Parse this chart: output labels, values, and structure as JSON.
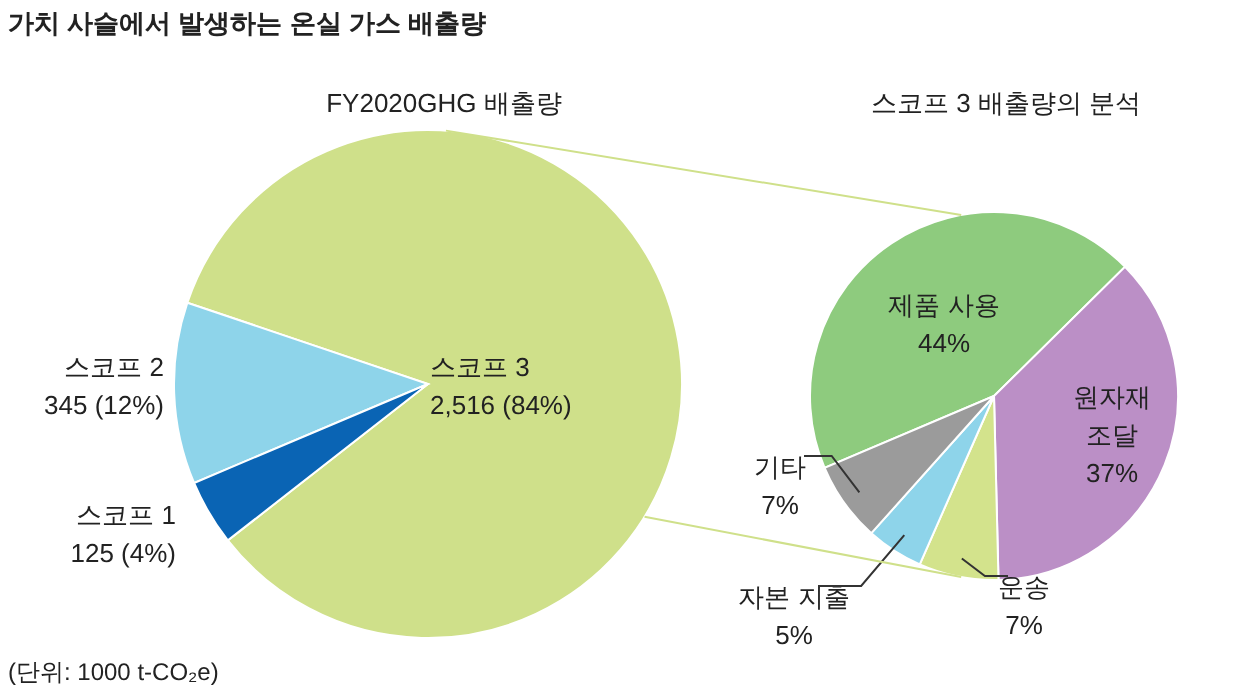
{
  "chart_data": [
    {
      "type": "pie",
      "title": "FY2020GHG 배출량",
      "categories": [
        "스코프 3",
        "스코프 2",
        "스코프 1"
      ],
      "values": [
        2516,
        345,
        125
      ],
      "colors": [
        "#cfe08a",
        "#8ed4ea",
        "#0a64b4"
      ],
      "value_labels": [
        "2,516 (84%)",
        "345 (12%)",
        "125 (4%)"
      ],
      "annotations": [
        "가치 사슬에서 발생하는 온실 가스 배출량",
        "(단위: 1000 t-CO₂e)"
      ]
    },
    {
      "type": "pie",
      "title": "스코프 3 배출량의 분석",
      "categories": [
        "제품 사용",
        "원자재 조달",
        "운송",
        "자본 지출",
        "기타"
      ],
      "values": [
        44,
        37,
        7,
        5,
        7
      ],
      "colors": [
        "#8ecb7e",
        "#bb8fc6",
        "#d3e38c",
        "#8ed4ea",
        "#9b9b9b"
      ],
      "value_labels": [
        "44%",
        "37%",
        "7%",
        "5%",
        "7%"
      ]
    }
  ]
}
